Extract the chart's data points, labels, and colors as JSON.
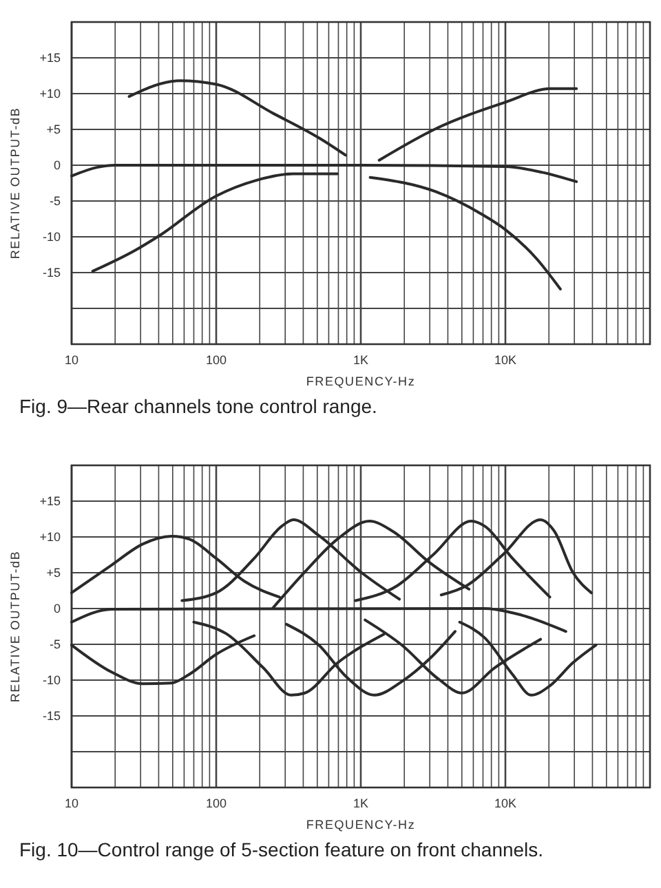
{
  "chart_data": [
    {
      "type": "line",
      "xlabel": "FREQUENCY-Hz",
      "ylabel": "RELATIVE OUTPUT-dB",
      "log": "x",
      "grid": true,
      "line_style": "solid",
      "marker": "none",
      "xlim": [
        10,
        100000
      ],
      "ylim": [
        -25,
        20
      ],
      "xticks": [
        {
          "value": 10,
          "label": "10"
        },
        {
          "value": 20,
          "label": null
        },
        {
          "value": 30,
          "label": null
        },
        {
          "value": 40,
          "label": null
        },
        {
          "value": 50,
          "label": null
        },
        {
          "value": 60,
          "label": null
        },
        {
          "value": 70,
          "label": null
        },
        {
          "value": 80,
          "label": null
        },
        {
          "value": 90,
          "label": null
        },
        {
          "value": 100,
          "label": "100"
        },
        {
          "value": 200,
          "label": null
        },
        {
          "value": 300,
          "label": null
        },
        {
          "value": 400,
          "label": null
        },
        {
          "value": 500,
          "label": null
        },
        {
          "value": 600,
          "label": null
        },
        {
          "value": 700,
          "label": null
        },
        {
          "value": 800,
          "label": null
        },
        {
          "value": 900,
          "label": null
        },
        {
          "value": 1000,
          "label": "1K"
        },
        {
          "value": 2000,
          "label": null
        },
        {
          "value": 3000,
          "label": null
        },
        {
          "value": 4000,
          "label": null
        },
        {
          "value": 5000,
          "label": null
        },
        {
          "value": 6000,
          "label": null
        },
        {
          "value": 7000,
          "label": null
        },
        {
          "value": 8000,
          "label": null
        },
        {
          "value": 9000,
          "label": null
        },
        {
          "value": 10000,
          "label": "10K"
        },
        {
          "value": 20000,
          "label": null
        },
        {
          "value": 30000,
          "label": null
        },
        {
          "value": 40000,
          "label": null
        },
        {
          "value": 50000,
          "label": null
        },
        {
          "value": 60000,
          "label": null
        },
        {
          "value": 70000,
          "label": null
        },
        {
          "value": 80000,
          "label": null
        },
        {
          "value": 90000,
          "label": null
        }
      ],
      "yticks": [
        {
          "value": -20,
          "label": null
        },
        {
          "value": -15,
          "label": "-15"
        },
        {
          "value": -10,
          "label": "-10"
        },
        {
          "value": -5,
          "label": "-5"
        },
        {
          "value": 0,
          "label": "0"
        },
        {
          "value": 5,
          "label": "+5"
        },
        {
          "value": 10,
          "label": "+10"
        },
        {
          "value": 15,
          "label": "+15"
        },
        {
          "value": 20,
          "label": null
        }
      ],
      "annotations": [
        "Fig. 9—Rear channels tone control range."
      ],
      "series": [
        {
          "color": "#2a2a2a",
          "x": [
            25,
            56,
            100,
            250,
            525,
            785
          ],
          "values": [
            9.6,
            11.8,
            11.3,
            7.2,
            3.7,
            1.4
          ]
        },
        {
          "color": "#2a2a2a",
          "x": [
            10,
            15,
            20,
            1000,
            10000,
            18000,
            31000
          ],
          "values": [
            -1.5,
            -0.3,
            0,
            0,
            -0.2,
            -1,
            -2.3
          ]
        },
        {
          "color": "#2a2a2a",
          "x": [
            14,
            28,
            40,
            100,
            190,
            340,
            690
          ],
          "values": [
            -14.8,
            -11.8,
            -9.9,
            -4.3,
            -2.1,
            -1.2,
            -1.2
          ]
        },
        {
          "color": "#2a2a2a",
          "x": [
            1340,
            3300,
            10000,
            20500,
            31000
          ],
          "values": [
            0.7,
            5.1,
            8.8,
            10.7,
            10.7
          ]
        },
        {
          "color": "#2a2a2a",
          "x": [
            1160,
            3300,
            6800,
            10000,
            16500,
            24000
          ],
          "values": [
            -1.7,
            -3.7,
            -6.8,
            -9,
            -13.1,
            -17.3
          ]
        }
      ]
    },
    {
      "type": "line",
      "xlabel": "FREQUENCY-Hz",
      "ylabel": "RELATIVE OUTPUT-dB",
      "log": "x",
      "grid": true,
      "line_style": "solid",
      "marker": "none",
      "xlim": [
        10,
        100000
      ],
      "ylim": [
        -25,
        20
      ],
      "xticks": [
        {
          "value": 10,
          "label": "10"
        },
        {
          "value": 20,
          "label": null
        },
        {
          "value": 30,
          "label": null
        },
        {
          "value": 40,
          "label": null
        },
        {
          "value": 50,
          "label": null
        },
        {
          "value": 60,
          "label": null
        },
        {
          "value": 70,
          "label": null
        },
        {
          "value": 80,
          "label": null
        },
        {
          "value": 90,
          "label": null
        },
        {
          "value": 100,
          "label": "100"
        },
        {
          "value": 200,
          "label": null
        },
        {
          "value": 300,
          "label": null
        },
        {
          "value": 400,
          "label": null
        },
        {
          "value": 500,
          "label": null
        },
        {
          "value": 600,
          "label": null
        },
        {
          "value": 700,
          "label": null
        },
        {
          "value": 800,
          "label": null
        },
        {
          "value": 900,
          "label": null
        },
        {
          "value": 1000,
          "label": "1K"
        },
        {
          "value": 2000,
          "label": null
        },
        {
          "value": 3000,
          "label": null
        },
        {
          "value": 4000,
          "label": null
        },
        {
          "value": 5000,
          "label": null
        },
        {
          "value": 6000,
          "label": null
        },
        {
          "value": 7000,
          "label": null
        },
        {
          "value": 8000,
          "label": null
        },
        {
          "value": 9000,
          "label": null
        },
        {
          "value": 10000,
          "label": "10K"
        },
        {
          "value": 20000,
          "label": null
        },
        {
          "value": 30000,
          "label": null
        },
        {
          "value": 40000,
          "label": null
        },
        {
          "value": 50000,
          "label": null
        },
        {
          "value": 60000,
          "label": null
        },
        {
          "value": 70000,
          "label": null
        },
        {
          "value": 80000,
          "label": null
        },
        {
          "value": 90000,
          "label": null
        }
      ],
      "yticks": [
        {
          "value": -20,
          "label": null
        },
        {
          "value": -15,
          "label": "-15"
        },
        {
          "value": -10,
          "label": "-10"
        },
        {
          "value": -5,
          "label": "-5"
        },
        {
          "value": 0,
          "label": "0"
        },
        {
          "value": 5,
          "label": "+5"
        },
        {
          "value": 10,
          "label": "+10"
        },
        {
          "value": 15,
          "label": "+15"
        },
        {
          "value": 20,
          "label": null
        }
      ],
      "annotations": [
        "Fig. 10—Control range of 5-section feature on front channels."
      ],
      "series": [
        {
          "color": "#2a2a2a",
          "x": [
            10,
            19,
            31,
            49,
            65,
            100,
            157,
            274
          ],
          "values": [
            2.2,
            6.1,
            9,
            10.1,
            9.7,
            7,
            3.8,
            1.6
          ]
        },
        {
          "color": "#2a2a2a",
          "x": [
            58,
            100,
            183,
            284,
            342,
            512,
            1000,
            1850
          ],
          "values": [
            1.1,
            2.2,
            7,
            11.5,
            12.4,
            10.2,
            5.1,
            1.3
          ]
        },
        {
          "color": "#2a2a2a",
          "x": [
            245,
            410,
            690,
            1150,
            1660,
            3000,
            5600
          ],
          "values": [
            0,
            5.1,
            9.7,
            12.2,
            10.8,
            6.4,
            2.7
          ]
        },
        {
          "color": "#2a2a2a",
          "x": [
            920,
            1790,
            3200,
            5800,
            7200,
            11200,
            20300
          ],
          "values": [
            1.1,
            3.2,
            7.6,
            12.2,
            11.5,
            7,
            1.6
          ]
        },
        {
          "color": "#2a2a2a",
          "x": [
            3600,
            5400,
            9700,
            17500,
            21800,
            29200,
            39300
          ],
          "values": [
            1.9,
            3.2,
            7.6,
            12.4,
            10.8,
            5.1,
            2.2
          ]
        },
        {
          "color": "#2a2a2a",
          "x": [
            10,
            19,
            7200,
            11200,
            26200
          ],
          "values": [
            -1.9,
            -0.1,
            0,
            -0.6,
            -3.2
          ]
        },
        {
          "color": "#2a2a2a",
          "x": [
            10,
            19,
            31,
            49,
            65,
            100,
            183
          ],
          "values": [
            -5.1,
            -8.9,
            -10.5,
            -10.4,
            -9.2,
            -6.4,
            -3.8
          ]
        },
        {
          "color": "#2a2a2a",
          "x": [
            70,
            117,
            212,
            330,
            410,
            690,
            1440
          ],
          "values": [
            -1.9,
            -3.5,
            -8.3,
            -12.1,
            -11.8,
            -7.6,
            -3.6
          ]
        },
        {
          "color": "#2a2a2a",
          "x": [
            306,
            512,
            800,
            1240,
            1920,
            3000,
            4490
          ],
          "values": [
            -2.2,
            -5.1,
            -9.6,
            -12.1,
            -10.2,
            -7,
            -3.2
          ]
        },
        {
          "color": "#2a2a2a",
          "x": [
            1070,
            1920,
            3470,
            5000,
            8400,
            17500
          ],
          "values": [
            -1.6,
            -5.1,
            -9.9,
            -11.8,
            -8.3,
            -4.3
          ]
        },
        {
          "color": "#2a2a2a",
          "x": [
            4830,
            7200,
            11200,
            15100,
            20300,
            29200,
            42300
          ],
          "values": [
            -1.9,
            -4.1,
            -9.2,
            -12.1,
            -10.8,
            -7.6,
            -5.1
          ]
        }
      ]
    }
  ]
}
